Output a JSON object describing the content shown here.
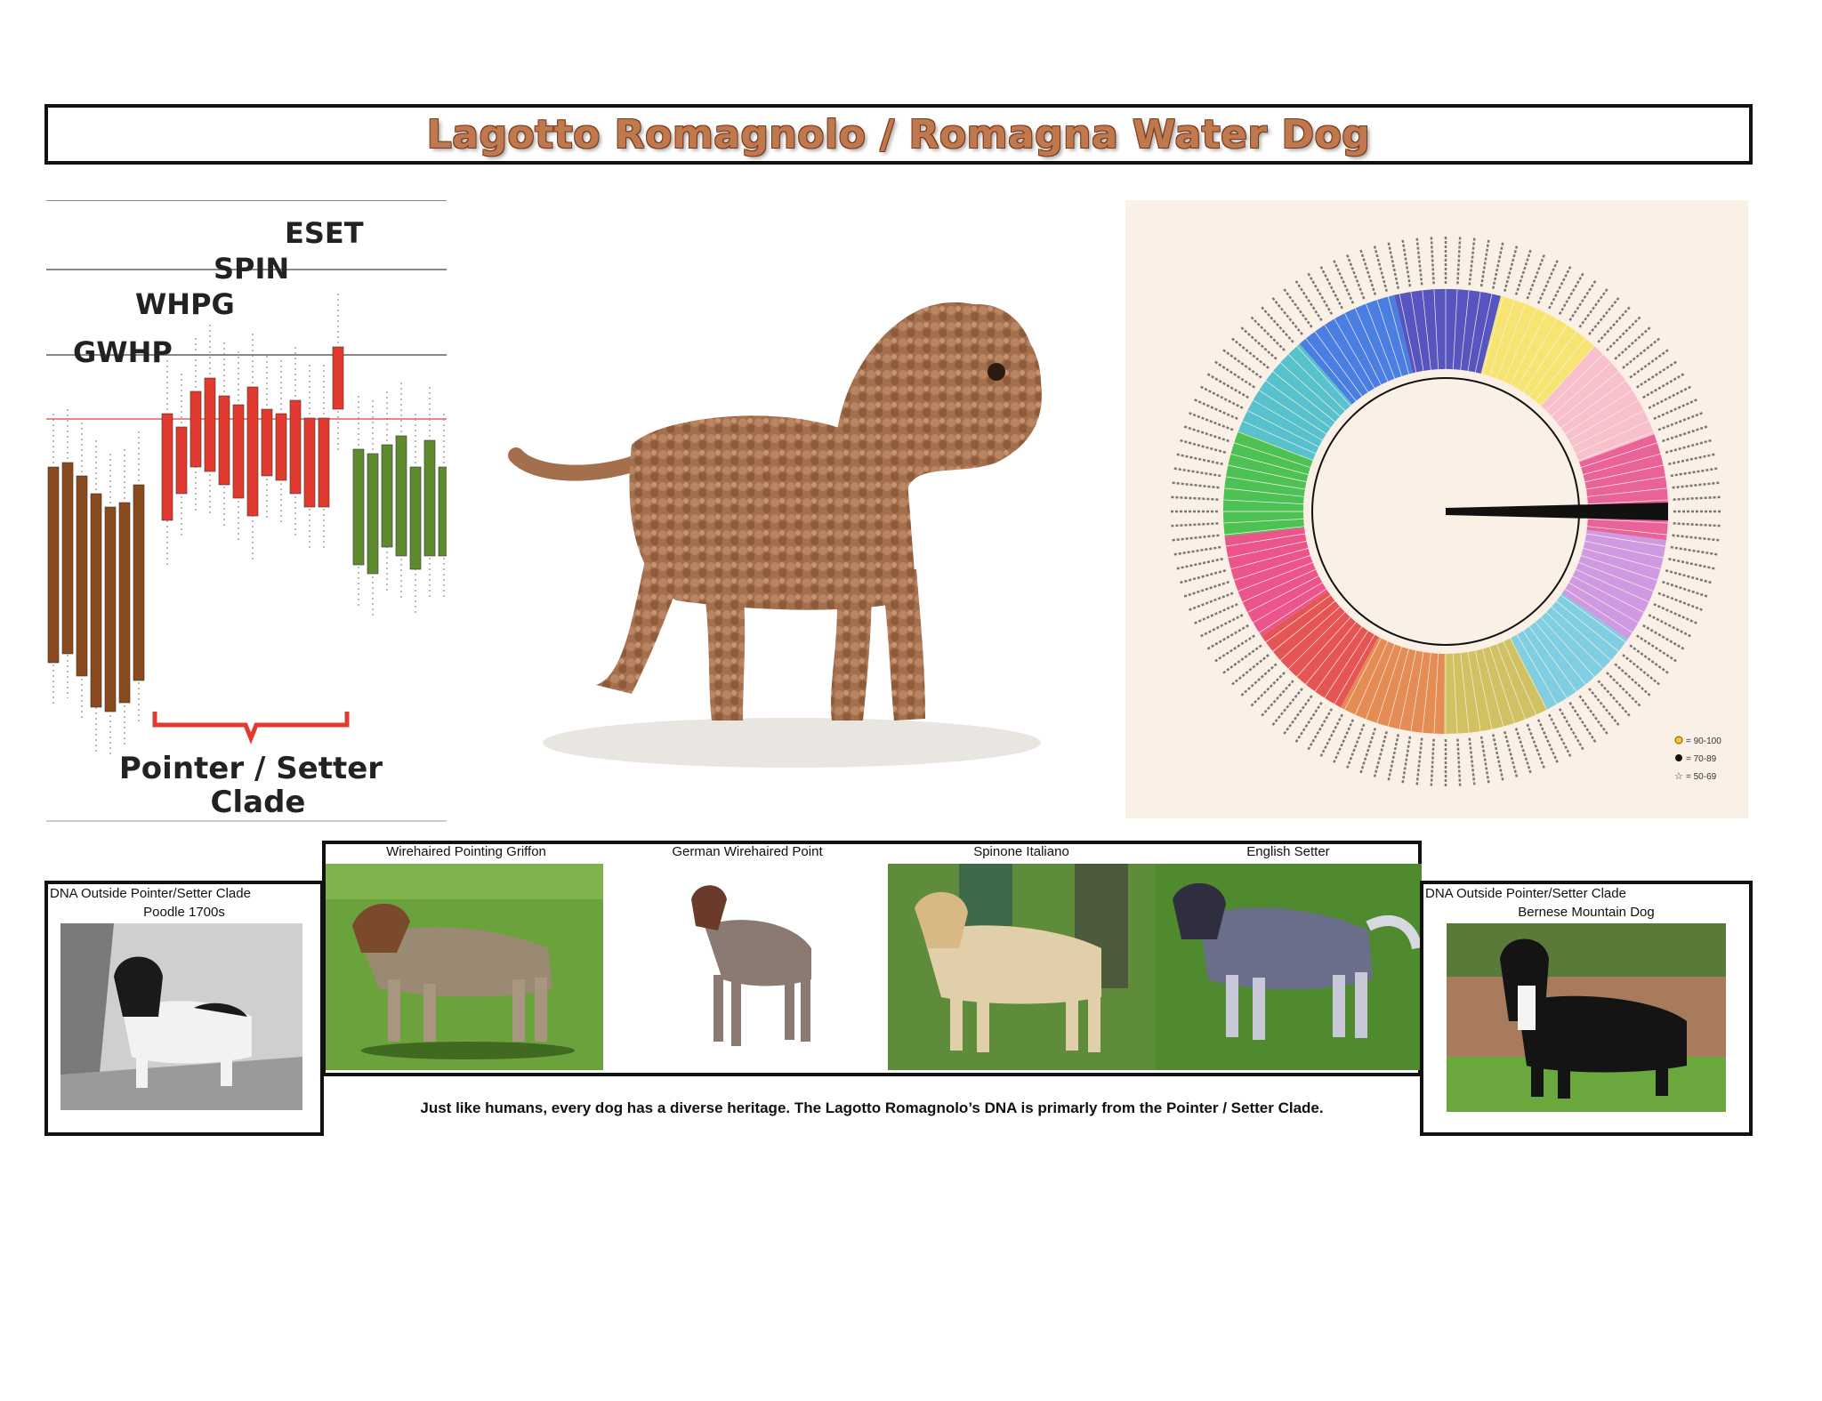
{
  "title": "Lagotto Romagnolo / Romagna Water Dog",
  "chart": {
    "levels": [
      "ESET",
      "SPIN",
      "WHPG",
      "GWHP"
    ],
    "bracket_label_line1": "Pointer / Setter",
    "bracket_label_line2": "Clade",
    "colors": {
      "brown": "#8b4a1e",
      "red": "#e23a2e",
      "green": "#5f8a2e"
    }
  },
  "phylogeny": {
    "legend": [
      "= 90-100",
      "= 70-89",
      "= 50-69"
    ]
  },
  "breeds": [
    {
      "label": "Wirehaired Pointing Griffon"
    },
    {
      "label": "German Wirehaired Point"
    },
    {
      "label": "Spinone Italiano"
    },
    {
      "label": "English Setter"
    }
  ],
  "caption": "Just like humans, every dog has a diverse heritage.   The Lagotto Romagnolo’s DNA is primarly from the Pointer / Setter Clade.",
  "left_panel": {
    "heading": "DNA Outside Pointer/Setter Clade",
    "subheading": "Poodle 1700s"
  },
  "right_panel": {
    "heading": "DNA Outside Pointer/Setter Clade",
    "subheading": "Bernese Mountain Dog"
  }
}
